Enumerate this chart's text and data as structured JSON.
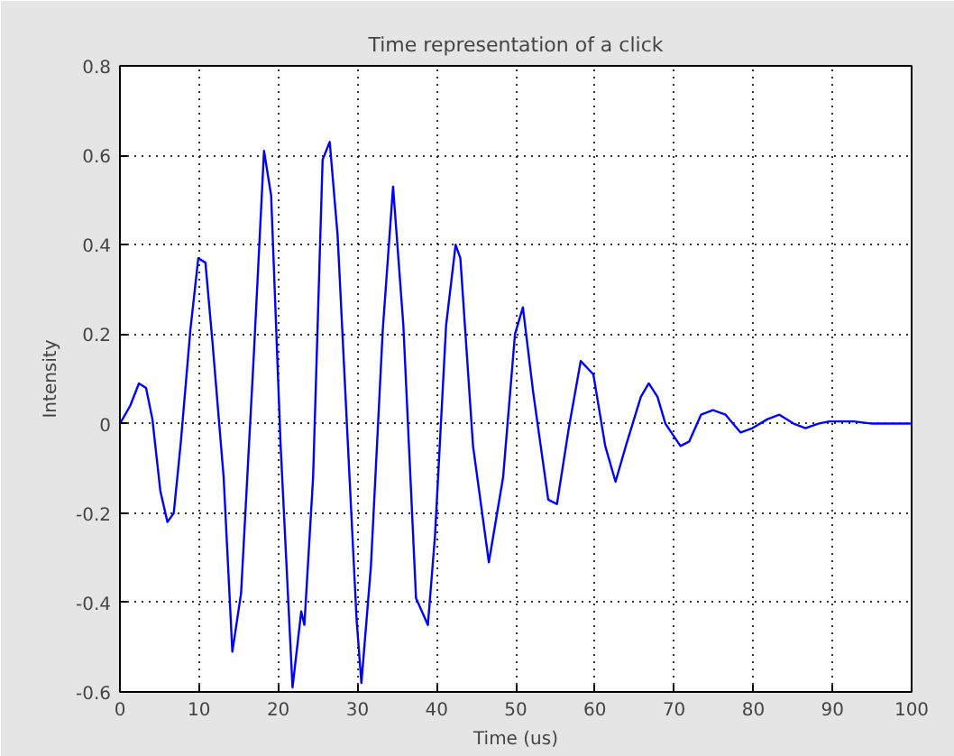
{
  "chart_data": {
    "type": "line",
    "title": "Time representation of a click",
    "xlabel": "Time (us)",
    "ylabel": "Intensity",
    "x": [
      0,
      1.3,
      2.4,
      3.3,
      4.1,
      5.1,
      6.0,
      6.8,
      7.7,
      8.9,
      9.9,
      10.8,
      11.7,
      13.1,
      14.2,
      15.3,
      16.9,
      18.2,
      19.1,
      20.3,
      21.8,
      22.9,
      23.3,
      24.4,
      25.6,
      26.5,
      27.5,
      29.0,
      29.9,
      30.5,
      31.7,
      33.2,
      34.5,
      35.8,
      37.4,
      38.9,
      39.8,
      41.2,
      42.4,
      43.0,
      44.6,
      46.6,
      48.4,
      49.9,
      50.9,
      52.2,
      54.1,
      55.2,
      56.7,
      58.2,
      59.8,
      61.3,
      62.6,
      63.9,
      65.8,
      66.8,
      67.9,
      68.9,
      70.8,
      71.9,
      73.4,
      74.9,
      76.5,
      78.4,
      79.9,
      81.8,
      83.3,
      85.1,
      86.6,
      88.2,
      89.6,
      92.7,
      95.0,
      100
    ],
    "series": [
      {
        "color": "#0000ff",
        "values": [
          0,
          0.04,
          0.09,
          0.08,
          0.01,
          -0.15,
          -0.22,
          -0.2,
          -0.04,
          0.21,
          0.37,
          0.36,
          0.18,
          -0.12,
          -0.51,
          -0.38,
          0.15,
          0.61,
          0.51,
          -0.05,
          -0.59,
          -0.42,
          -0.45,
          -0.12,
          0.59,
          0.63,
          0.42,
          -0.12,
          -0.44,
          -0.58,
          -0.32,
          0.21,
          0.53,
          0.22,
          -0.39,
          -0.45,
          -0.25,
          0.22,
          0.4,
          0.37,
          -0.05,
          -0.31,
          -0.12,
          0.2,
          0.26,
          0.07,
          -0.17,
          -0.18,
          -0.01,
          0.14,
          0.11,
          -0.05,
          -0.13,
          -0.05,
          0.06,
          0.09,
          0.06,
          0.0,
          -0.05,
          -0.04,
          0.02,
          0.03,
          0.02,
          -0.02,
          -0.01,
          0.01,
          0.02,
          0.0,
          -0.01,
          0.0,
          0.005,
          0.005,
          0,
          0
        ]
      }
    ],
    "xlim": [
      0,
      100
    ],
    "ylim": [
      -0.6,
      0.8
    ],
    "xticks": [
      0,
      10,
      20,
      30,
      40,
      50,
      60,
      70,
      80,
      90,
      100
    ],
    "yticks": [
      -0.6,
      -0.4,
      -0.2,
      0,
      0.2,
      0.4,
      0.6,
      0.8
    ],
    "grid": true,
    "line_style": "solid"
  }
}
